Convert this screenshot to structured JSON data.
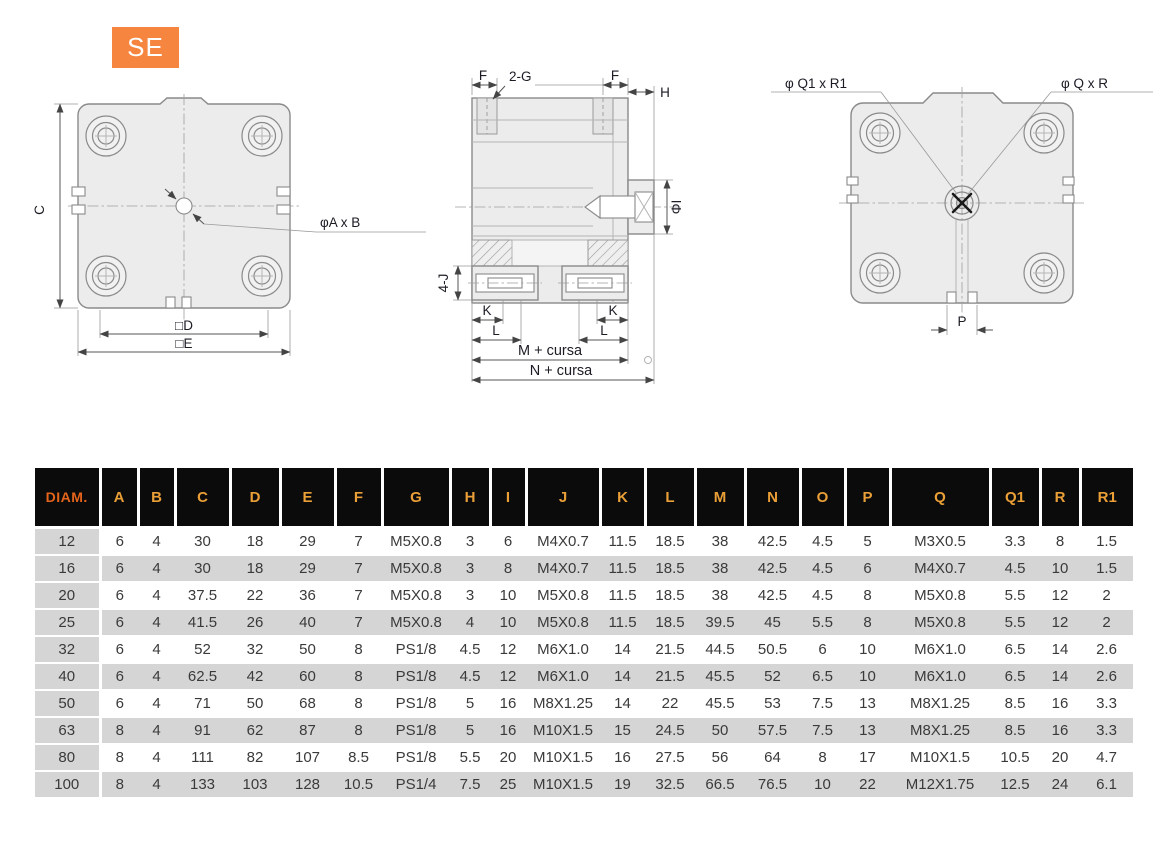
{
  "page": {
    "series_badge": "SE"
  },
  "drawings": {
    "front_view": {
      "labels": {
        "c": "C",
        "d": "□D",
        "e": "□E",
        "axb": "φA x B"
      }
    },
    "side_view": {
      "labels": {
        "f_left": "F",
        "g": "2-G",
        "f_right": "F",
        "h": "H",
        "i": "ΦI",
        "j": "4-J",
        "k_left": "K",
        "k_right": "K",
        "l_left": "L",
        "l_right": "L",
        "m": "M + cursa",
        "n": "N + cursa"
      }
    },
    "rear_view": {
      "labels": {
        "q1r1": "φ Q1 x R1",
        "qr": "φ Q x R",
        "p": "P"
      }
    }
  },
  "table": {
    "columns": [
      "DIAM.",
      "A",
      "B",
      "C",
      "D",
      "E",
      "F",
      "G",
      "H",
      "I",
      "J",
      "K",
      "L",
      "M",
      "N",
      "O",
      "P",
      "Q",
      "Q1",
      "R",
      "R1"
    ],
    "rows": [
      [
        "12",
        "6",
        "4",
        "30",
        "18",
        "29",
        "7",
        "M5X0.8",
        "3",
        "6",
        "M4X0.7",
        "11.5",
        "18.5",
        "38",
        "42.5",
        "4.5",
        "5",
        "M3X0.5",
        "3.3",
        "8",
        "1.5"
      ],
      [
        "16",
        "6",
        "4",
        "30",
        "18",
        "29",
        "7",
        "M5X0.8",
        "3",
        "8",
        "M4X0.7",
        "11.5",
        "18.5",
        "38",
        "42.5",
        "4.5",
        "6",
        "M4X0.7",
        "4.5",
        "10",
        "1.5"
      ],
      [
        "20",
        "6",
        "4",
        "37.5",
        "22",
        "36",
        "7",
        "M5X0.8",
        "3",
        "10",
        "M5X0.8",
        "11.5",
        "18.5",
        "38",
        "42.5",
        "4.5",
        "8",
        "M5X0.8",
        "5.5",
        "12",
        "2"
      ],
      [
        "25",
        "6",
        "4",
        "41.5",
        "26",
        "40",
        "7",
        "M5X0.8",
        "4",
        "10",
        "M5X0.8",
        "11.5",
        "18.5",
        "39.5",
        "45",
        "5.5",
        "8",
        "M5X0.8",
        "5.5",
        "12",
        "2"
      ],
      [
        "32",
        "6",
        "4",
        "52",
        "32",
        "50",
        "8",
        "PS1/8",
        "4.5",
        "12",
        "M6X1.0",
        "14",
        "21.5",
        "44.5",
        "50.5",
        "6",
        "10",
        "M6X1.0",
        "6.5",
        "14",
        "2.6"
      ],
      [
        "40",
        "6",
        "4",
        "62.5",
        "42",
        "60",
        "8",
        "PS1/8",
        "4.5",
        "12",
        "M6X1.0",
        "14",
        "21.5",
        "45.5",
        "52",
        "6.5",
        "10",
        "M6X1.0",
        "6.5",
        "14",
        "2.6"
      ],
      [
        "50",
        "6",
        "4",
        "71",
        "50",
        "68",
        "8",
        "PS1/8",
        "5",
        "16",
        "M8X1.25",
        "14",
        "22",
        "45.5",
        "53",
        "7.5",
        "13",
        "M8X1.25",
        "8.5",
        "16",
        "3.3"
      ],
      [
        "63",
        "8",
        "4",
        "91",
        "62",
        "87",
        "8",
        "PS1/8",
        "5",
        "16",
        "M10X1.5",
        "15",
        "24.5",
        "50",
        "57.5",
        "7.5",
        "13",
        "M8X1.25",
        "8.5",
        "16",
        "3.3"
      ],
      [
        "80",
        "8",
        "4",
        "111",
        "82",
        "107",
        "8.5",
        "PS1/8",
        "5.5",
        "20",
        "M10X1.5",
        "16",
        "27.5",
        "56",
        "64",
        "8",
        "17",
        "M10X1.5",
        "10.5",
        "20",
        "4.7"
      ],
      [
        "100",
        "8",
        "4",
        "133",
        "103",
        "128",
        "10.5",
        "PS1/4",
        "7.5",
        "25",
        "M10X1.5",
        "19",
        "32.5",
        "66.5",
        "76.5",
        "10",
        "22",
        "M12X1.75",
        "12.5",
        "24",
        "6.1"
      ]
    ]
  },
  "colors": {
    "accent_orange": "#F6853F",
    "table_header_bg": "#0B0B0B",
    "table_header_letter": "#EA9F37",
    "table_header_diam": "#E5641C",
    "row_alt_gray": "#D5D5D5"
  }
}
